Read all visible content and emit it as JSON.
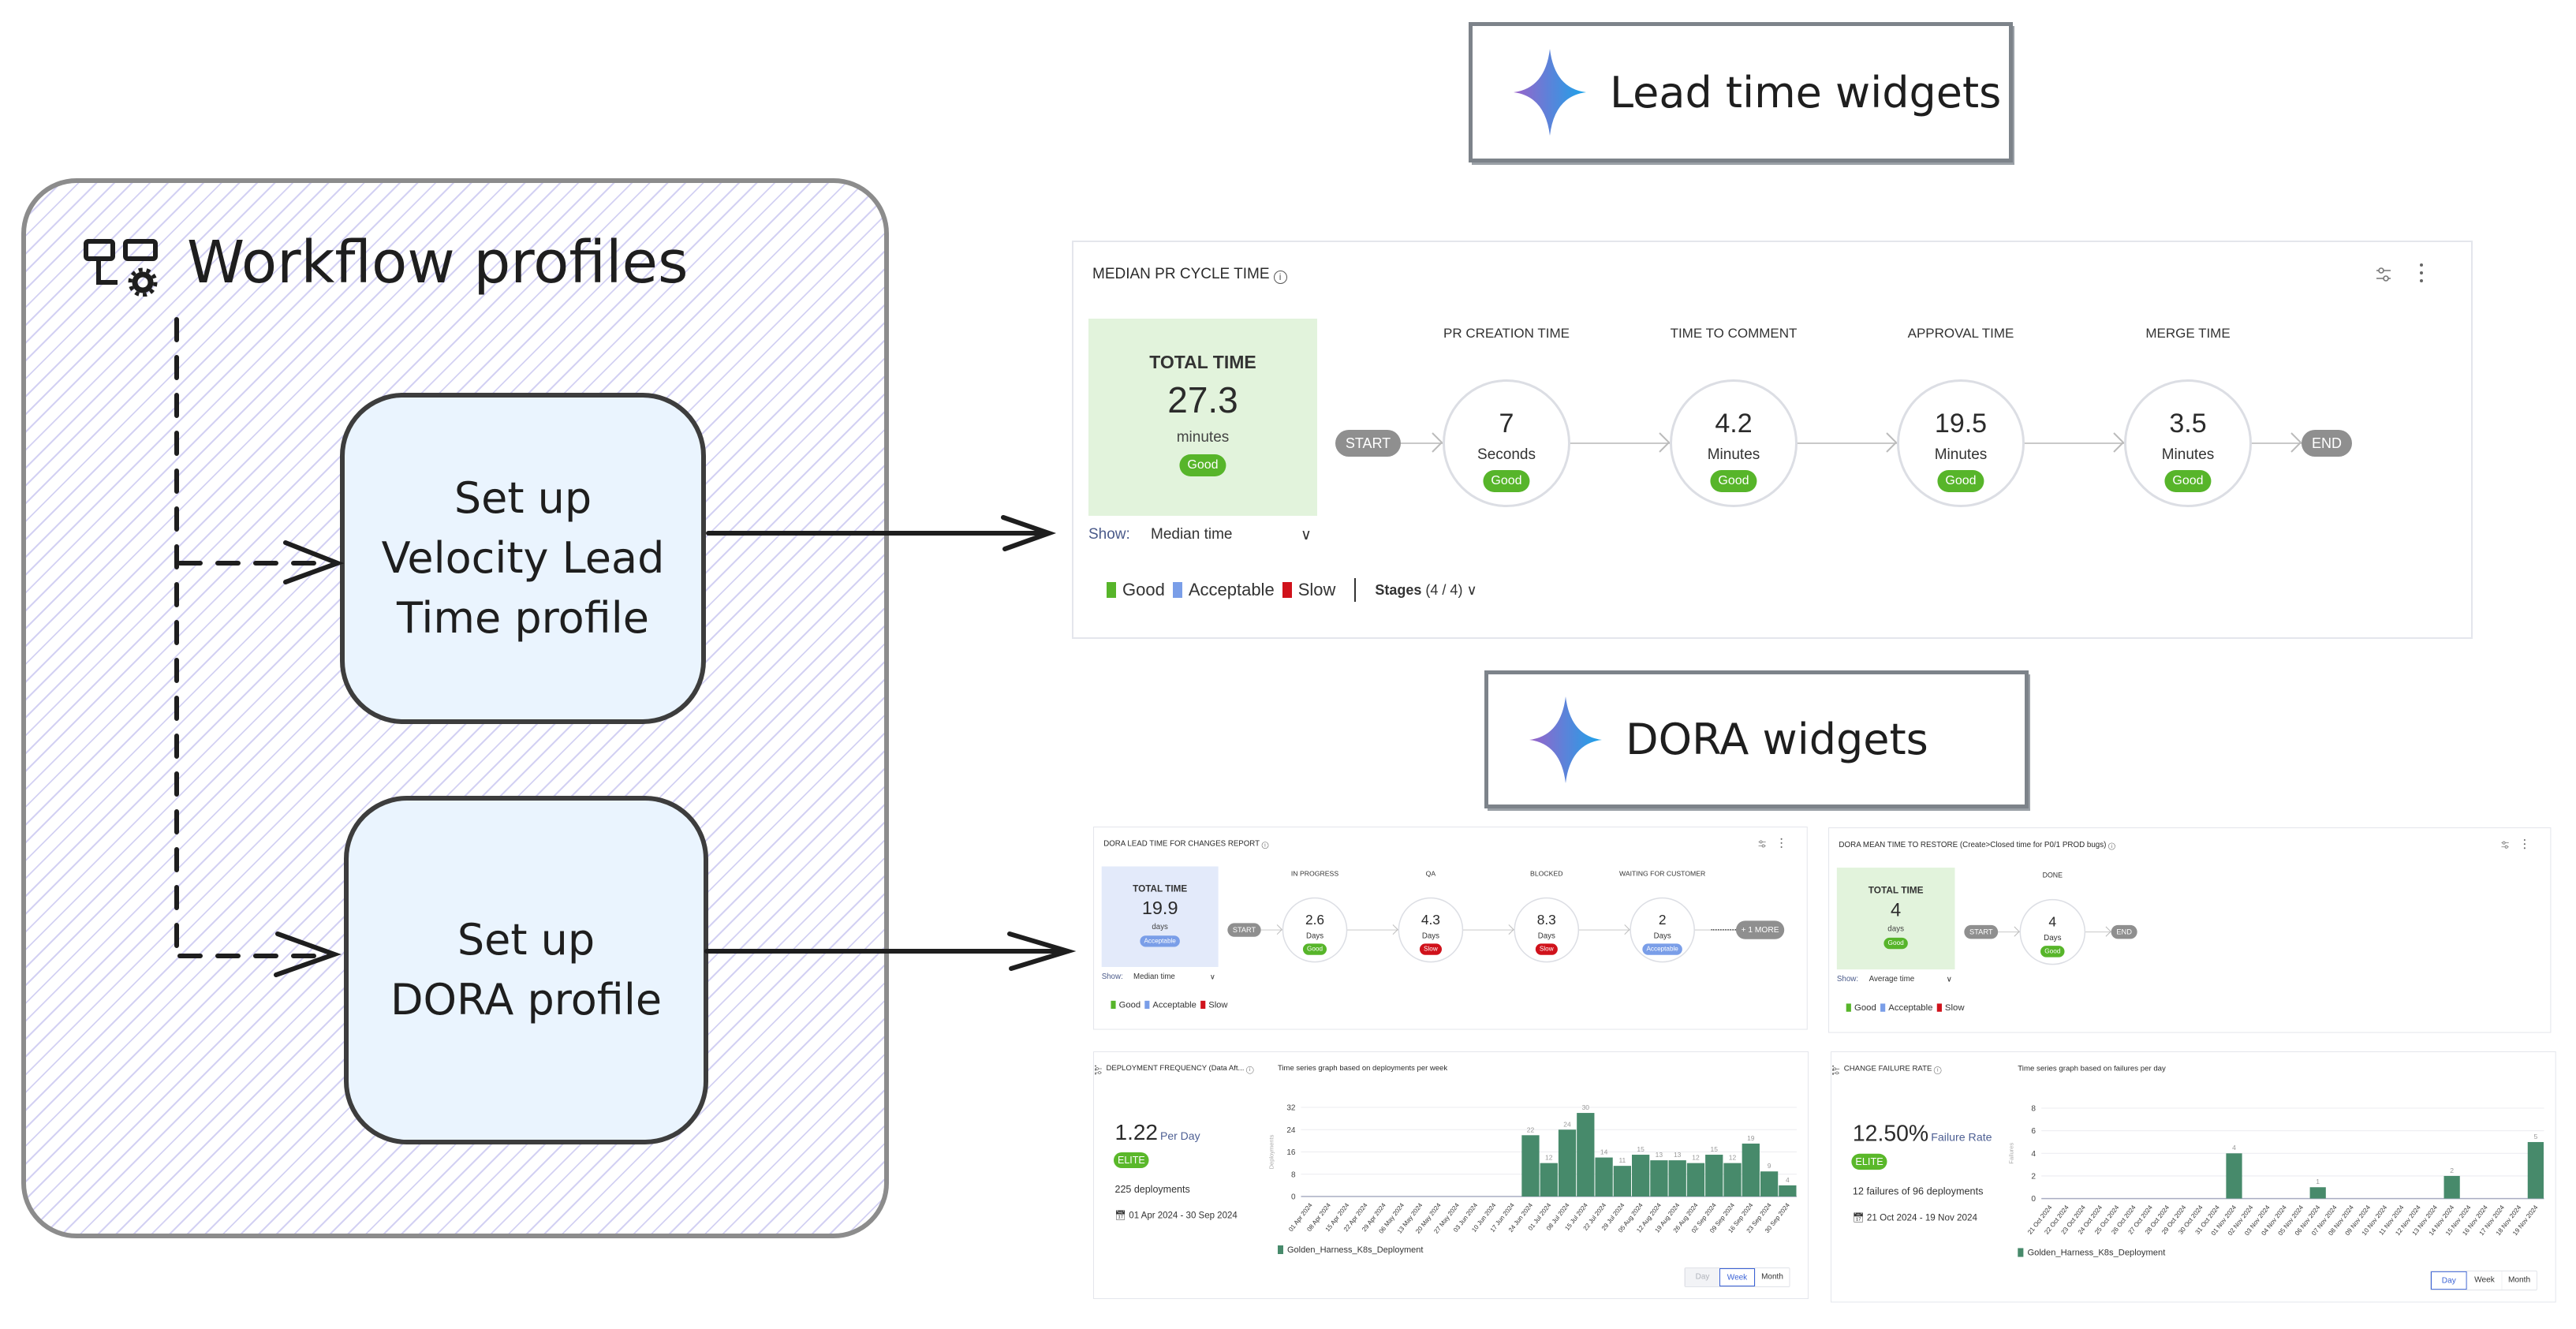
{
  "diagram": {
    "title": "Workflow profiles",
    "profile_velocity": [
      "Set up",
      "Velocity Lead",
      "Time profile"
    ],
    "profile_dora": [
      "Set up",
      "DORA profile"
    ],
    "label_lead_time": "Lead time widgets",
    "label_dora": "DORA widgets"
  },
  "colors": {
    "Good": "#57b52a",
    "Acceptable": "#7a9ee8",
    "Slow": "#d0121b",
    "bar": "#478a6b",
    "total_good_bg": "#e2f3dc",
    "total_acceptable_bg": "#e3eafa"
  },
  "widgets": {
    "pr_cycle": {
      "title": "MEDIAN PR CYCLE TIME",
      "total": {
        "label": "TOTAL TIME",
        "value": "27.3",
        "unit": "minutes",
        "rating": "Good"
      },
      "start": "START",
      "end": "END",
      "stages": [
        {
          "name": "PR CREATION TIME",
          "value": "7",
          "unit": "Seconds",
          "rating": "Good"
        },
        {
          "name": "TIME TO COMMENT",
          "value": "4.2",
          "unit": "Minutes",
          "rating": "Good"
        },
        {
          "name": "APPROVAL TIME",
          "value": "19.5",
          "unit": "Minutes",
          "rating": "Good"
        },
        {
          "name": "MERGE TIME",
          "value": "3.5",
          "unit": "Minutes",
          "rating": "Good"
        }
      ],
      "show_label": "Show:",
      "show_value": "Median time",
      "legend": [
        "Good",
        "Acceptable",
        "Slow"
      ],
      "stages_label": "Stages",
      "stages_count": "(4 / 4)"
    },
    "dora_lead": {
      "title": "DORA LEAD TIME FOR CHANGES REPORT",
      "total": {
        "label": "TOTAL TIME",
        "value": "19.9",
        "unit": "days",
        "rating": "Acceptable"
      },
      "start": "START",
      "more": "+ 1 MORE",
      "stages": [
        {
          "name": "IN PROGRESS",
          "value": "2.6",
          "unit": "Days",
          "rating": "Good"
        },
        {
          "name": "QA",
          "value": "4.3",
          "unit": "Days",
          "rating": "Slow"
        },
        {
          "name": "BLOCKED",
          "value": "8.3",
          "unit": "Days",
          "rating": "Slow"
        },
        {
          "name": "WAITING FOR CUSTOMER",
          "value": "2",
          "unit": "Days",
          "rating": "Acceptable"
        }
      ],
      "show_label": "Show:",
      "show_value": "Median time",
      "legend": [
        "Good",
        "Acceptable",
        "Slow"
      ]
    },
    "mttr": {
      "title": "DORA MEAN TIME TO RESTORE (Create>Closed time for P0/1 PROD bugs)",
      "total": {
        "label": "TOTAL TIME",
        "value": "4",
        "unit": "days",
        "rating": "Good"
      },
      "start": "START",
      "end": "END",
      "stages": [
        {
          "name": "DONE",
          "value": "4",
          "unit": "Days",
          "rating": "Good"
        }
      ],
      "show_label": "Show:",
      "show_value": "Average time",
      "legend": [
        "Good",
        "Acceptable",
        "Slow"
      ]
    },
    "deploy_freq": {
      "title": "DEPLOYMENT FREQUENCY (Data Aft...",
      "subtitle": "Time series graph based on deployments per week",
      "value": "1.22",
      "value_unit": "Per Day",
      "badge": "ELITE",
      "count": "225 deployments",
      "date_range": "01 Apr 2024 - 30 Sep 2024",
      "buttons": [
        "Day",
        "Week",
        "Month"
      ],
      "active": "Week",
      "disabled": "Day"
    },
    "cfr": {
      "title": "CHANGE FAILURE RATE",
      "subtitle": "Time series graph based on failures per day",
      "value": "12.50%",
      "value_unit": "Failure Rate",
      "badge": "ELITE",
      "count": "12 failures of 96 deployments",
      "date_range": "21 Oct 2024 - 19 Nov 2024",
      "buttons": [
        "Day",
        "Week",
        "Month"
      ],
      "active": "Day"
    }
  },
  "chart_data": [
    {
      "type": "bar",
      "widget": "deploy_freq",
      "ylabel": "Deployments",
      "ylim": [
        0,
        32
      ],
      "yticks": [
        0,
        8,
        16,
        24,
        32
      ],
      "grid": true,
      "legend": "bottom-left",
      "categories": [
        "01 Apr 2024",
        "08 Apr 2024",
        "15 Apr 2024",
        "22 Apr 2024",
        "29 Apr 2024",
        "06 May 2024",
        "13 May 2024",
        "20 May 2024",
        "27 May 2024",
        "03 Jun 2024",
        "10 Jun 2024",
        "17 Jun 2024",
        "24 Jun 2024",
        "01 Jul 2024",
        "08 Jul 2024",
        "15 Jul 2024",
        "22 Jul 2024",
        "29 Jul 2024",
        "05 Aug 2024",
        "12 Aug 2024",
        "19 Aug 2024",
        "26 Aug 2024",
        "02 Sep 2024",
        "09 Sep 2024",
        "16 Sep 2024",
        "23 Sep 2024",
        "30 Sep 2024"
      ],
      "series": [
        {
          "name": "Golden_Harness_K8s_Deployment",
          "values": [
            0,
            0,
            0,
            0,
            0,
            0,
            0,
            0,
            0,
            0,
            0,
            0,
            22,
            12,
            24,
            30,
            14,
            11,
            15,
            13,
            13,
            12,
            15,
            12,
            19,
            9,
            4
          ]
        }
      ]
    },
    {
      "type": "bar",
      "widget": "cfr",
      "ylabel": "Failures",
      "ylim": [
        0,
        8
      ],
      "yticks": [
        0,
        2,
        4,
        6,
        8
      ],
      "grid": true,
      "legend": "bottom-left",
      "categories": [
        "21 Oct 2024",
        "22 Oct 2024",
        "23 Oct 2024",
        "24 Oct 2024",
        "25 Oct 2024",
        "26 Oct 2024",
        "27 Oct 2024",
        "28 Oct 2024",
        "29 Oct 2024",
        "30 Oct 2024",
        "31 Oct 2024",
        "01 Nov 2024",
        "02 Nov 2024",
        "03 Nov 2024",
        "04 Nov 2024",
        "05 Nov 2024",
        "06 Nov 2024",
        "07 Nov 2024",
        "08 Nov 2024",
        "09 Nov 2024",
        "10 Nov 2024",
        "11 Nov 2024",
        "12 Nov 2024",
        "13 Nov 2024",
        "14 Nov 2024",
        "15 Nov 2024",
        "16 Nov 2024",
        "17 Nov 2024",
        "18 Nov 2024",
        "19 Nov 2024"
      ],
      "series": [
        {
          "name": "Golden_Harness_K8s_Deployment",
          "values": [
            0,
            0,
            0,
            0,
            0,
            0,
            0,
            0,
            0,
            0,
            0,
            4,
            0,
            0,
            0,
            0,
            1,
            0,
            0,
            0,
            0,
            0,
            0,
            0,
            2,
            0,
            0,
            0,
            0,
            5
          ]
        }
      ]
    }
  ]
}
